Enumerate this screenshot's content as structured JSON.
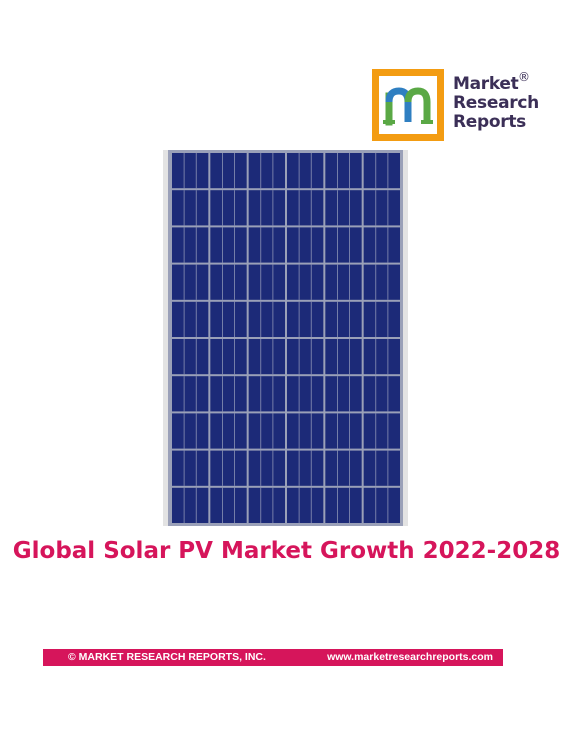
{
  "logo": {
    "line1": "Market",
    "line2": "Research",
    "line3": "Reports",
    "registered": "®",
    "monogram_colors": [
      "#5aa845",
      "#2f7fc1",
      "#f39c12"
    ],
    "text_color": "#3b2f57"
  },
  "cover_image": {
    "icon": "solar-panel",
    "cell_color": "#1c2a78",
    "frame_color": "#d8d8d8"
  },
  "title": "Global Solar PV Market Growth 2022-2028",
  "footer": {
    "copyright": "© MARKET RESEARCH REPORTS, INC.",
    "website": "www.marketresearchreports.com",
    "bar_color": "#d6155b"
  }
}
